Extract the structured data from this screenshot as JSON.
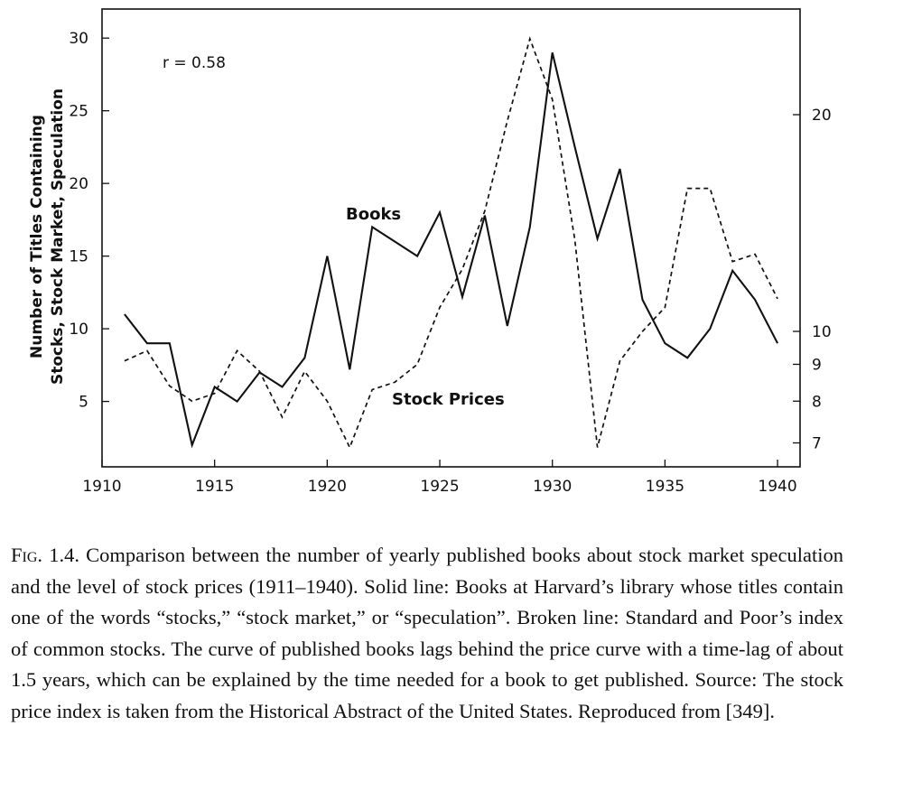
{
  "chart_data": {
    "type": "line",
    "annotation_r": "r = 0.58",
    "ylabel_line1": "Number of Titles Containing",
    "ylabel_line2": "Stocks, Stock Market, Speculation",
    "x_ticks": [
      "1910",
      "1915",
      "1920",
      "1925",
      "1930",
      "1935",
      "1940"
    ],
    "xlim": [
      1910,
      1941
    ],
    "y_left_ticks": [
      "5",
      "10",
      "15",
      "20",
      "25",
      "30"
    ],
    "y_left_lim": [
      0.5,
      32
    ],
    "y_right_ticks": [
      "7",
      "8",
      "9",
      "10",
      "20"
    ],
    "y_right_scale": "log",
    "series": [
      {
        "name": "Books",
        "style": "solid",
        "axis": "left",
        "x": [
          1911,
          1912,
          1913,
          1914,
          1915,
          1916,
          1917,
          1918,
          1919,
          1920,
          1921,
          1922,
          1923,
          1924,
          1925,
          1926,
          1927,
          1928,
          1929,
          1930,
          1931,
          1932,
          1933,
          1934,
          1935,
          1936,
          1937,
          1938,
          1939,
          1940
        ],
        "values": [
          11,
          9,
          9,
          2,
          6,
          5,
          7,
          6,
          8,
          15,
          7.2,
          17,
          16,
          15,
          18,
          12.2,
          17.8,
          10.2,
          17,
          29,
          22.5,
          16.2,
          21,
          12,
          9,
          8,
          10,
          14,
          12,
          9
        ]
      },
      {
        "name": "Stock Prices",
        "style": "dashed",
        "axis": "right",
        "x": [
          1911,
          1912,
          1913,
          1914,
          1915,
          1916,
          1917,
          1918,
          1919,
          1920,
          1921,
          1922,
          1923,
          1924,
          1925,
          1926,
          1927,
          1928,
          1929,
          1930,
          1931,
          1932,
          1933,
          1934,
          1935,
          1936,
          1937,
          1938,
          1939,
          1940
        ],
        "values": [
          9.1,
          9.4,
          8.4,
          8.0,
          8.2,
          9.4,
          8.8,
          7.6,
          8.8,
          8.0,
          6.9,
          8.3,
          8.5,
          9.0,
          10.8,
          12.2,
          14.7,
          19.6,
          25.5,
          21.0,
          13.4,
          6.9,
          9.1,
          10.0,
          10.8,
          15.8,
          15.8,
          12.5,
          12.8,
          11.1
        ]
      }
    ]
  },
  "caption": {
    "label": "Fig. 1.4.",
    "text": "Comparison between the number of yearly published books about stock market speculation and the level of stock prices (1911–1940). Solid line: Books at Harvard’s library whose titles contain one of the words “stocks,” “stock market,” or “speculation”. Broken line: Standard and Poor’s index of common stocks. The curve of published books lags behind the price curve with a time-lag of about 1.5 years, which can be explained by the time needed for a book to get published. Source: The stock price index is taken from the Historical Abstract of the United States. Reproduced from [349]."
  }
}
